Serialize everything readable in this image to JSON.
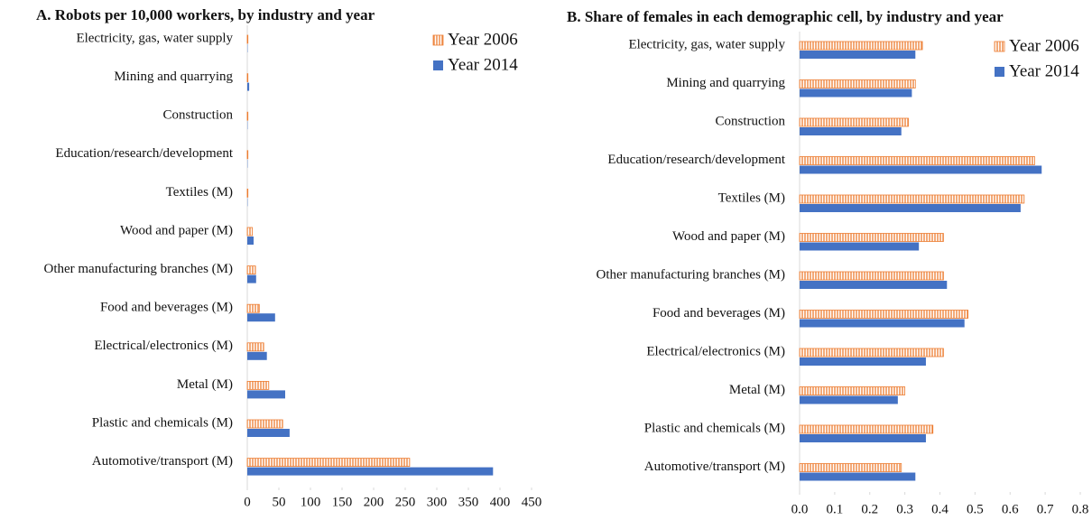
{
  "chart_data": [
    {
      "type": "bar",
      "orientation": "horizontal",
      "title": "A.  Robots per 10,000 workers, by industry and year",
      "categories": [
        "Electricity, gas, water supply",
        "Mining and quarrying",
        "Construction",
        "Education/research/development",
        "Textiles (M)",
        "Wood and paper (M)",
        "Other manufacturing branches (M)",
        "Food and beverages (M)",
        "Electrical/electronics (M)",
        "Metal (M)",
        "Plastic and chemicals (M)",
        "Automotive/transport (M)"
      ],
      "series": [
        {
          "name": "Year 2006",
          "color": "#ed7d31",
          "hatch": true,
          "values": [
            1,
            1,
            1,
            1,
            1,
            8,
            13,
            19,
            26,
            34,
            56,
            257
          ]
        },
        {
          "name": "Year 2014",
          "color": "#4472c4",
          "hatch": false,
          "values": [
            0.5,
            3,
            0.5,
            0.5,
            0.5,
            10,
            14,
            44,
            31,
            60,
            67,
            389
          ]
        }
      ],
      "xlim": [
        0,
        450
      ],
      "xticks": [
        0,
        50,
        100,
        150,
        200,
        250,
        300,
        350,
        400,
        450
      ],
      "legend": "top-right"
    },
    {
      "type": "bar",
      "orientation": "horizontal",
      "title": "B. Share of females in each demographic cell, by industry and year",
      "categories": [
        "Electricity, gas, water supply",
        "Mining and quarrying",
        "Construction",
        "Education/research/development",
        "Textiles (M)",
        "Wood and paper (M)",
        "Other manufacturing branches (M)",
        "Food and beverages (M)",
        "Electrical/electronics (M)",
        "Metal (M)",
        "Plastic and chemicals (M)",
        "Automotive/transport (M)"
      ],
      "series": [
        {
          "name": "Year 2006",
          "color": "#ed7d31",
          "hatch": true,
          "values": [
            0.35,
            0.33,
            0.31,
            0.67,
            0.64,
            0.41,
            0.41,
            0.48,
            0.41,
            0.3,
            0.38,
            0.29
          ]
        },
        {
          "name": "Year 2014",
          "color": "#4472c4",
          "hatch": false,
          "values": [
            0.33,
            0.32,
            0.29,
            0.69,
            0.63,
            0.34,
            0.42,
            0.47,
            0.36,
            0.28,
            0.36,
            0.33
          ]
        }
      ],
      "xlim": [
        0,
        0.8
      ],
      "xticks": [
        {
          "value": 0,
          "label": "0.0"
        },
        0.1,
        0.2,
        0.3,
        0.4,
        0.5,
        0.6,
        0.7,
        0.8
      ],
      "legend": "top-right"
    }
  ]
}
